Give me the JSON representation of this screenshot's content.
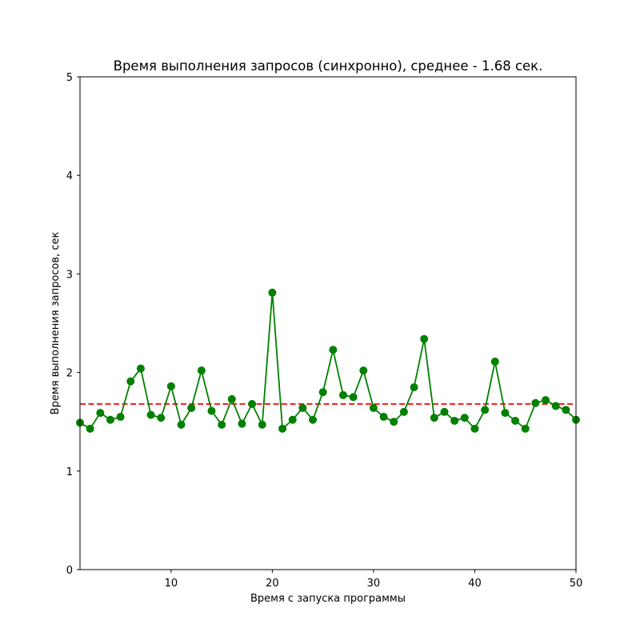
{
  "chart_data": {
    "type": "line",
    "title": "Время выполнения запросов (синхронно), среднее - 1.68 сек.",
    "xlabel": "Время с запуска программы",
    "ylabel": "Время выполнения запросов, сек",
    "xlim": [
      1,
      50
    ],
    "ylim": [
      0,
      5
    ],
    "x_ticks": [
      10,
      20,
      30,
      40,
      50
    ],
    "y_ticks": [
      0,
      1,
      2,
      3,
      4,
      5
    ],
    "grid": false,
    "colors": {
      "series": "#008000",
      "mean_line": "#ff0000"
    },
    "mean": 1.68,
    "x": [
      1,
      2,
      3,
      4,
      5,
      6,
      7,
      8,
      9,
      10,
      11,
      12,
      13,
      14,
      15,
      16,
      17,
      18,
      19,
      20,
      21,
      22,
      23,
      24,
      25,
      26,
      27,
      28,
      29,
      30,
      31,
      32,
      33,
      34,
      35,
      36,
      37,
      38,
      39,
      40,
      41,
      42,
      43,
      44,
      45,
      46,
      47,
      48,
      49,
      50
    ],
    "series": [
      {
        "values": [
          1.49,
          1.43,
          1.59,
          1.52,
          1.55,
          1.91,
          2.04,
          1.57,
          1.54,
          1.86,
          1.47,
          1.64,
          2.02,
          1.61,
          1.47,
          1.73,
          1.48,
          1.68,
          1.47,
          2.81,
          1.43,
          1.52,
          1.64,
          1.52,
          1.8,
          2.23,
          1.77,
          1.75,
          2.02,
          1.64,
          1.55,
          1.5,
          1.6,
          1.85,
          2.34,
          1.54,
          1.6,
          1.51,
          1.54,
          1.43,
          1.62,
          2.11,
          1.59,
          1.51,
          1.43,
          1.69,
          1.72,
          1.66,
          1.62,
          1.52
        ]
      }
    ]
  }
}
